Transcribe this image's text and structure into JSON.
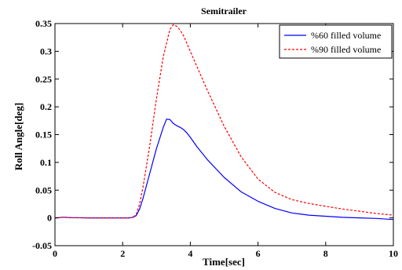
{
  "chart_data": {
    "type": "line",
    "title": "Semitrailer",
    "xlabel": "Time[sec]",
    "ylabel": "Roll Angle[deg]",
    "xlim": [
      0,
      10
    ],
    "ylim": [
      -0.05,
      0.35
    ],
    "xticks": [
      0,
      2,
      4,
      6,
      8,
      10
    ],
    "yticks": [
      -0.05,
      0,
      0.05,
      0.1,
      0.15,
      0.2,
      0.25,
      0.3,
      0.35
    ],
    "xtick_labels": [
      "0",
      "2",
      "4",
      "6",
      "8",
      "10"
    ],
    "ytick_labels": [
      "-0.05",
      "0",
      "0.05",
      "0.1",
      "0.15",
      "0.2",
      "0.25",
      "0.3",
      "0.35"
    ],
    "grid": false,
    "legend_position": "top-right",
    "series": [
      {
        "name": "%60 filled volume",
        "color": "#0000ff",
        "style": "solid",
        "x": [
          0,
          0.1,
          0.2,
          0.3,
          0.5,
          1.0,
          1.5,
          2.0,
          2.2,
          2.3,
          2.4,
          2.5,
          2.6,
          2.8,
          3.0,
          3.2,
          3.3,
          3.4,
          3.5,
          3.6,
          3.7,
          3.8,
          3.9,
          4.0,
          4.2,
          4.5,
          5.0,
          5.5,
          6.0,
          6.5,
          7.0,
          7.5,
          8.0,
          8.5,
          9.0,
          9.5,
          10.0
        ],
        "y": [
          0,
          0.0005,
          0.001,
          0.001,
          0.0005,
          0,
          0,
          0,
          0,
          0.001,
          0.004,
          0.016,
          0.035,
          0.08,
          0.125,
          0.163,
          0.178,
          0.177,
          0.17,
          0.166,
          0.163,
          0.159,
          0.153,
          0.145,
          0.128,
          0.105,
          0.073,
          0.047,
          0.03,
          0.017,
          0.009,
          0.005,
          0.003,
          0.001,
          0.0,
          -0.001,
          -0.003
        ]
      },
      {
        "name": "%90 filled volume",
        "color": "#ff0000",
        "style": "dashed",
        "x": [
          0,
          0.1,
          0.2,
          0.3,
          0.5,
          1.0,
          1.5,
          2.0,
          2.2,
          2.3,
          2.4,
          2.5,
          2.6,
          2.8,
          3.0,
          3.2,
          3.4,
          3.5,
          3.6,
          3.7,
          3.8,
          4.0,
          4.2,
          4.5,
          5.0,
          5.5,
          6.0,
          6.5,
          7.0,
          7.5,
          8.0,
          8.5,
          9.0,
          9.5,
          10.0
        ],
        "y": [
          0,
          0.0005,
          0.001,
          0.001,
          0.0005,
          0,
          0,
          0,
          0,
          0.001,
          0.006,
          0.025,
          0.055,
          0.13,
          0.215,
          0.29,
          0.34,
          0.348,
          0.345,
          0.338,
          0.328,
          0.3,
          0.272,
          0.23,
          0.165,
          0.11,
          0.07,
          0.046,
          0.033,
          0.026,
          0.021,
          0.016,
          0.012,
          0.008,
          0.005
        ]
      }
    ]
  }
}
